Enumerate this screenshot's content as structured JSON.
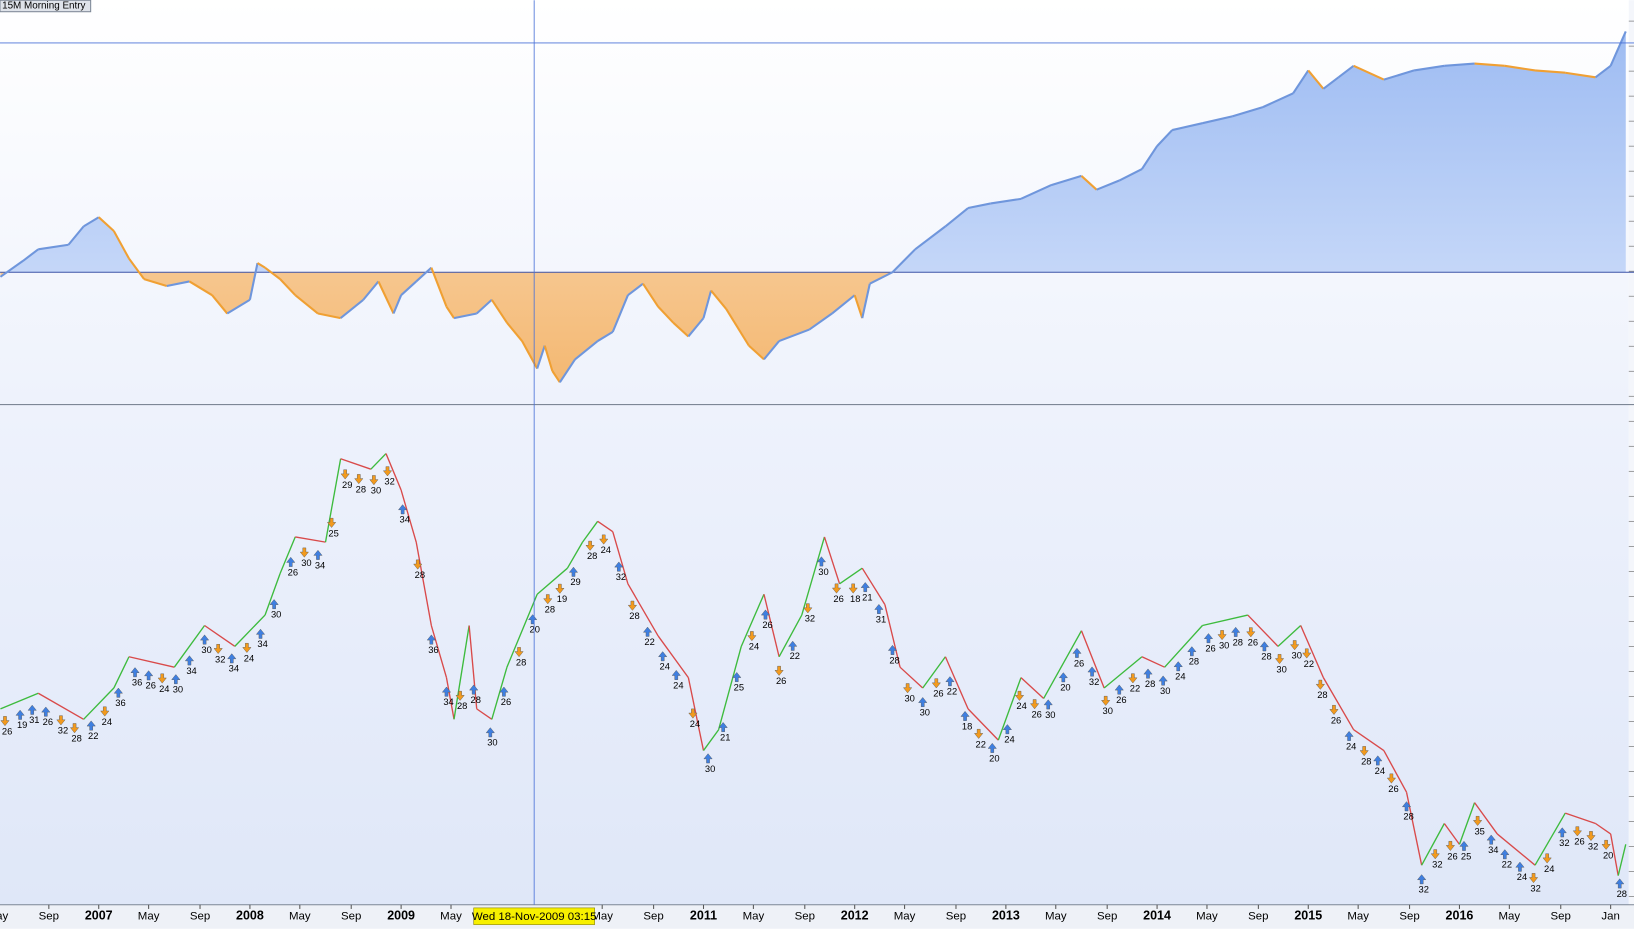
{
  "chart_data": [
    {
      "type": "area",
      "title": "15M Morning Entry",
      "x": [
        2006.35,
        2006.5,
        2006.6,
        2006.8,
        2006.9,
        2007.0,
        2007.1,
        2007.2,
        2007.3,
        2007.45,
        2007.6,
        2007.75,
        2007.85,
        2008.0,
        2008.05,
        2008.1,
        2008.2,
        2008.3,
        2008.45,
        2008.6,
        2008.75,
        2008.85,
        2008.95,
        2009.0,
        2009.1,
        2009.2,
        2009.3,
        2009.35,
        2009.5,
        2009.6,
        2009.7,
        2009.8,
        2009.85,
        2009.9,
        2009.95,
        2010.0,
        2010.05,
        2010.15,
        2010.3,
        2010.4,
        2010.5,
        2010.6,
        2010.7,
        2010.8,
        2010.9,
        2011.0,
        2011.05,
        2011.15,
        2011.3,
        2011.4,
        2011.5,
        2011.7,
        2011.85,
        2012.0,
        2012.05,
        2012.1,
        2012.25,
        2012.4,
        2012.6,
        2012.75,
        2012.9,
        2013.1,
        2013.3,
        2013.5,
        2013.6,
        2013.75,
        2013.9,
        2014.0,
        2014.1,
        2014.3,
        2014.5,
        2014.7,
        2014.9,
        2015.0,
        2015.1,
        2015.2,
        2015.3,
        2015.5,
        2015.7,
        2015.9,
        2016.1,
        2016.3,
        2016.5,
        2016.7,
        2016.9,
        2017.0,
        2017.1
      ],
      "values": [
        -2,
        5,
        10,
        12,
        20,
        24,
        18,
        6,
        -3,
        -6,
        -4,
        -10,
        -18,
        -12,
        4,
        2,
        -3,
        -10,
        -18,
        -20,
        -12,
        -4,
        -18,
        -10,
        -4,
        2,
        -15,
        -20,
        -18,
        -12,
        -22,
        -30,
        -36,
        -42,
        -32,
        -43,
        -48,
        -38,
        -30,
        -26,
        -10,
        -5,
        -15,
        -22,
        -28,
        -20,
        -8,
        -16,
        -32,
        -38,
        -30,
        -25,
        -18,
        -10,
        -20,
        -5,
        0,
        10,
        20,
        28,
        30,
        32,
        38,
        42,
        36,
        40,
        45,
        55,
        62,
        65,
        68,
        72,
        78,
        88,
        80,
        85,
        90,
        84,
        88,
        90,
        91,
        90,
        88,
        87,
        85,
        90,
        105
      ],
      "color_up": "#6f96dc",
      "color_down": "#f0a033",
      "fill_up": "#a9c4f4",
      "fill_down": "#f5bf7d",
      "xlim": [
        2006.347,
        2017.12
      ],
      "ylim": [
        -57.7,
        118.6
      ],
      "baseline": 0
    },
    {
      "type": "line",
      "x": [
        2006.35,
        2006.6,
        2006.9,
        2007.1,
        2007.2,
        2007.5,
        2007.7,
        2007.9,
        2008.1,
        2008.2,
        2008.3,
        2008.5,
        2008.6,
        2008.8,
        2008.9,
        2009.0,
        2009.1,
        2009.2,
        2009.3,
        2009.35,
        2009.45,
        2009.5,
        2009.6,
        2009.7,
        2009.9,
        2010.1,
        2010.2,
        2010.3,
        2010.4,
        2010.5,
        2010.7,
        2010.9,
        2011.0,
        2011.1,
        2011.25,
        2011.4,
        2011.5,
        2011.65,
        2011.8,
        2011.9,
        2012.05,
        2012.2,
        2012.3,
        2012.45,
        2012.6,
        2012.75,
        2012.95,
        2013.1,
        2013.25,
        2013.5,
        2013.65,
        2013.9,
        2014.05,
        2014.3,
        2014.6,
        2014.8,
        2014.95,
        2015.1,
        2015.3,
        2015.5,
        2015.65,
        2015.75,
        2015.9,
        2016.0,
        2016.1,
        2016.25,
        2016.5,
        2016.7,
        2016.9,
        2017.0,
        2017.05,
        2017.1
      ],
      "values": [
        220,
        235,
        210,
        240,
        270,
        260,
        300,
        280,
        310,
        350,
        385,
        380,
        460,
        450,
        465,
        430,
        380,
        300,
        250,
        210,
        300,
        220,
        210,
        260,
        330,
        355,
        380,
        400,
        390,
        340,
        290,
        250,
        180,
        200,
        280,
        330,
        270,
        310,
        385,
        340,
        355,
        320,
        260,
        240,
        270,
        220,
        190,
        250,
        230,
        295,
        240,
        270,
        260,
        300,
        310,
        280,
        300,
        250,
        200,
        180,
        140,
        70,
        110,
        90,
        130,
        100,
        70,
        120,
        110,
        100,
        60,
        90
      ],
      "color_up": "#3dbb3d",
      "color_down": "#d94a4a",
      "xlim": [
        2006.347,
        2017.12
      ],
      "ylim": [
        32,
        512
      ],
      "xticks": [
        {
          "value": 2006.33,
          "label": "May"
        },
        {
          "value": 2006.67,
          "label": "Sep"
        },
        {
          "value": 2007,
          "label": "2007"
        },
        {
          "value": 2007.33,
          "label": "May"
        },
        {
          "value": 2007.67,
          "label": "Sep"
        },
        {
          "value": 2008,
          "label": "2008"
        },
        {
          "value": 2008.33,
          "label": "May"
        },
        {
          "value": 2008.67,
          "label": "Sep"
        },
        {
          "value": 2009,
          "label": "2009"
        },
        {
          "value": 2009.33,
          "label": "May"
        },
        {
          "value": 2010.33,
          "label": "May"
        },
        {
          "value": 2010.67,
          "label": "Sep"
        },
        {
          "value": 2011,
          "label": "2011"
        },
        {
          "value": 2011.33,
          "label": "May"
        },
        {
          "value": 2011.67,
          "label": "Sep"
        },
        {
          "value": 2012,
          "label": "2012"
        },
        {
          "value": 2012.33,
          "label": "May"
        },
        {
          "value": 2012.67,
          "label": "Sep"
        },
        {
          "value": 2013,
          "label": "2013"
        },
        {
          "value": 2013.33,
          "label": "May"
        },
        {
          "value": 2013.67,
          "label": "Sep"
        },
        {
          "value": 2014,
          "label": "2014"
        },
        {
          "value": 2014.33,
          "label": "May"
        },
        {
          "value": 2014.67,
          "label": "Sep"
        },
        {
          "value": 2015,
          "label": "2015"
        },
        {
          "value": 2015.33,
          "label": "May"
        },
        {
          "value": 2015.67,
          "label": "Sep"
        },
        {
          "value": 2016,
          "label": "2016"
        },
        {
          "value": 2016.33,
          "label": "May"
        },
        {
          "value": 2016.67,
          "label": "Sep"
        },
        {
          "value": 2017,
          "label": "Jan"
        }
      ],
      "crosshair": {
        "label": "Wed 18-Nov-2009 03:15",
        "x": 2009.88
      },
      "trades": [
        {
          "x": 2006.38,
          "label": "26",
          "dir": "down"
        },
        {
          "x": 2006.48,
          "label": "19",
          "dir": "up"
        },
        {
          "x": 2006.56,
          "label": "31",
          "dir": "up"
        },
        {
          "x": 2006.65,
          "label": "26",
          "dir": "up"
        },
        {
          "x": 2006.75,
          "label": "32",
          "dir": "down"
        },
        {
          "x": 2006.84,
          "label": "28",
          "dir": "down"
        },
        {
          "x": 2006.95,
          "label": "22",
          "dir": "up"
        },
        {
          "x": 2007.04,
          "label": "24",
          "dir": "down"
        },
        {
          "x": 2007.13,
          "label": "36",
          "dir": "up"
        },
        {
          "x": 2007.24,
          "label": "36",
          "dir": "up"
        },
        {
          "x": 2007.33,
          "label": "26",
          "dir": "up"
        },
        {
          "x": 2007.42,
          "label": "24",
          "dir": "down"
        },
        {
          "x": 2007.51,
          "label": "30",
          "dir": "up"
        },
        {
          "x": 2007.6,
          "label": "34",
          "dir": "up"
        },
        {
          "x": 2007.7,
          "label": "30",
          "dir": "up"
        },
        {
          "x": 2007.79,
          "label": "32",
          "dir": "down"
        },
        {
          "x": 2007.88,
          "label": "34",
          "dir": "up"
        },
        {
          "x": 2007.98,
          "label": "24",
          "dir": "down"
        },
        {
          "x": 2008.07,
          "label": "34",
          "dir": "up"
        },
        {
          "x": 2008.16,
          "label": "30",
          "dir": "up"
        },
        {
          "x": 2008.27,
          "label": "26",
          "dir": "up"
        },
        {
          "x": 2008.36,
          "label": "30",
          "dir": "down"
        },
        {
          "x": 2008.45,
          "label": "34",
          "dir": "up"
        },
        {
          "x": 2008.54,
          "label": "25",
          "dir": "down"
        },
        {
          "x": 2008.63,
          "label": "29",
          "dir": "down"
        },
        {
          "x": 2008.72,
          "label": "28",
          "dir": "down"
        },
        {
          "x": 2008.82,
          "label": "30",
          "dir": "down"
        },
        {
          "x": 2008.91,
          "label": "32",
          "dir": "down"
        },
        {
          "x": 2009.01,
          "label": "34",
          "dir": "up"
        },
        {
          "x": 2009.11,
          "label": "28",
          "dir": "down"
        },
        {
          "x": 2009.2,
          "label": "36",
          "dir": "up"
        },
        {
          "x": 2009.3,
          "label": "34",
          "dir": "up"
        },
        {
          "x": 2009.39,
          "label": "28",
          "dir": "down"
        },
        {
          "x": 2009.48,
          "label": "28",
          "dir": "up"
        },
        {
          "x": 2009.59,
          "label": "30",
          "dir": "up"
        },
        {
          "x": 2009.68,
          "label": "26",
          "dir": "up"
        },
        {
          "x": 2009.78,
          "label": "28",
          "dir": "down"
        },
        {
          "x": 2009.87,
          "label": "20",
          "dir": "up"
        },
        {
          "x": 2009.97,
          "label": "28",
          "dir": "down"
        },
        {
          "x": 2010.05,
          "label": "19",
          "dir": "down"
        },
        {
          "x": 2010.14,
          "label": "29",
          "dir": "up"
        },
        {
          "x": 2010.25,
          "label": "28",
          "dir": "down"
        },
        {
          "x": 2010.34,
          "label": "24",
          "dir": "down"
        },
        {
          "x": 2010.44,
          "label": "32",
          "dir": "up"
        },
        {
          "x": 2010.53,
          "label": "28",
          "dir": "down"
        },
        {
          "x": 2010.63,
          "label": "22",
          "dir": "up"
        },
        {
          "x": 2010.73,
          "label": "24",
          "dir": "up"
        },
        {
          "x": 2010.82,
          "label": "24",
          "dir": "up"
        },
        {
          "x": 2010.93,
          "label": "24",
          "dir": "down"
        },
        {
          "x": 2011.03,
          "label": "30",
          "dir": "up"
        },
        {
          "x": 2011.13,
          "label": "21",
          "dir": "up"
        },
        {
          "x": 2011.22,
          "label": "25",
          "dir": "up"
        },
        {
          "x": 2011.32,
          "label": "24",
          "dir": "down"
        },
        {
          "x": 2011.41,
          "label": "26",
          "dir": "up"
        },
        {
          "x": 2011.5,
          "label": "26",
          "dir": "down"
        },
        {
          "x": 2011.59,
          "label": "22",
          "dir": "up"
        },
        {
          "x": 2011.69,
          "label": "32",
          "dir": "down"
        },
        {
          "x": 2011.78,
          "label": "30",
          "dir": "up"
        },
        {
          "x": 2011.88,
          "label": "26",
          "dir": "down"
        },
        {
          "x": 2011.99,
          "label": "18",
          "dir": "down"
        },
        {
          "x": 2012.07,
          "label": "21",
          "dir": "up"
        },
        {
          "x": 2012.16,
          "label": "31",
          "dir": "up"
        },
        {
          "x": 2012.25,
          "label": "28",
          "dir": "up"
        },
        {
          "x": 2012.35,
          "label": "30",
          "dir": "down"
        },
        {
          "x": 2012.45,
          "label": "30",
          "dir": "up"
        },
        {
          "x": 2012.54,
          "label": "26",
          "dir": "down"
        },
        {
          "x": 2012.63,
          "label": "22",
          "dir": "up"
        },
        {
          "x": 2012.73,
          "label": "18",
          "dir": "up"
        },
        {
          "x": 2012.82,
          "label": "22",
          "dir": "down"
        },
        {
          "x": 2012.91,
          "label": "20",
          "dir": "up"
        },
        {
          "x": 2013.01,
          "label": "24",
          "dir": "up"
        },
        {
          "x": 2013.09,
          "label": "24",
          "dir": "down"
        },
        {
          "x": 2013.19,
          "label": "26",
          "dir": "down"
        },
        {
          "x": 2013.28,
          "label": "30",
          "dir": "up"
        },
        {
          "x": 2013.38,
          "label": "20",
          "dir": "up"
        },
        {
          "x": 2013.47,
          "label": "26",
          "dir": "up"
        },
        {
          "x": 2013.57,
          "label": "32",
          "dir": "up"
        },
        {
          "x": 2013.66,
          "label": "30",
          "dir": "down"
        },
        {
          "x": 2013.75,
          "label": "26",
          "dir": "up"
        },
        {
          "x": 2013.84,
          "label": "22",
          "dir": "down"
        },
        {
          "x": 2013.94,
          "label": "28",
          "dir": "up"
        },
        {
          "x": 2014.04,
          "label": "30",
          "dir": "up"
        },
        {
          "x": 2014.14,
          "label": "24",
          "dir": "up"
        },
        {
          "x": 2014.23,
          "label": "28",
          "dir": "up"
        },
        {
          "x": 2014.34,
          "label": "26",
          "dir": "up"
        },
        {
          "x": 2014.43,
          "label": "30",
          "dir": "down"
        },
        {
          "x": 2014.52,
          "label": "28",
          "dir": "up"
        },
        {
          "x": 2014.62,
          "label": "26",
          "dir": "down"
        },
        {
          "x": 2014.71,
          "label": "28",
          "dir": "up"
        },
        {
          "x": 2014.81,
          "label": "30",
          "dir": "down"
        },
        {
          "x": 2014.91,
          "label": "30",
          "dir": "down"
        },
        {
          "x": 2014.99,
          "label": "22",
          "dir": "down"
        },
        {
          "x": 2015.08,
          "label": "28",
          "dir": "down"
        },
        {
          "x": 2015.17,
          "label": "26",
          "dir": "down"
        },
        {
          "x": 2015.27,
          "label": "24",
          "dir": "up"
        },
        {
          "x": 2015.37,
          "label": "28",
          "dir": "down"
        },
        {
          "x": 2015.46,
          "label": "24",
          "dir": "up"
        },
        {
          "x": 2015.55,
          "label": "26",
          "dir": "down"
        },
        {
          "x": 2015.65,
          "label": "28",
          "dir": "up"
        },
        {
          "x": 2015.75,
          "label": "32",
          "dir": "up"
        },
        {
          "x": 2015.84,
          "label": "32",
          "dir": "down"
        },
        {
          "x": 2015.94,
          "label": "26",
          "dir": "down"
        },
        {
          "x": 2016.03,
          "label": "25",
          "dir": "up"
        },
        {
          "x": 2016.12,
          "label": "35",
          "dir": "down"
        },
        {
          "x": 2016.21,
          "label": "34",
          "dir": "up"
        },
        {
          "x": 2016.3,
          "label": "22",
          "dir": "up"
        },
        {
          "x": 2016.4,
          "label": "24",
          "dir": "up"
        },
        {
          "x": 2016.49,
          "label": "32",
          "dir": "down"
        },
        {
          "x": 2016.58,
          "label": "24",
          "dir": "down"
        },
        {
          "x": 2016.68,
          "label": "32",
          "dir": "up"
        },
        {
          "x": 2016.78,
          "label": "26",
          "dir": "down"
        },
        {
          "x": 2016.87,
          "label": "32",
          "dir": "down"
        },
        {
          "x": 2016.97,
          "label": "20",
          "dir": "down"
        },
        {
          "x": 2017.06,
          "label": "28",
          "dir": "up"
        }
      ]
    }
  ]
}
